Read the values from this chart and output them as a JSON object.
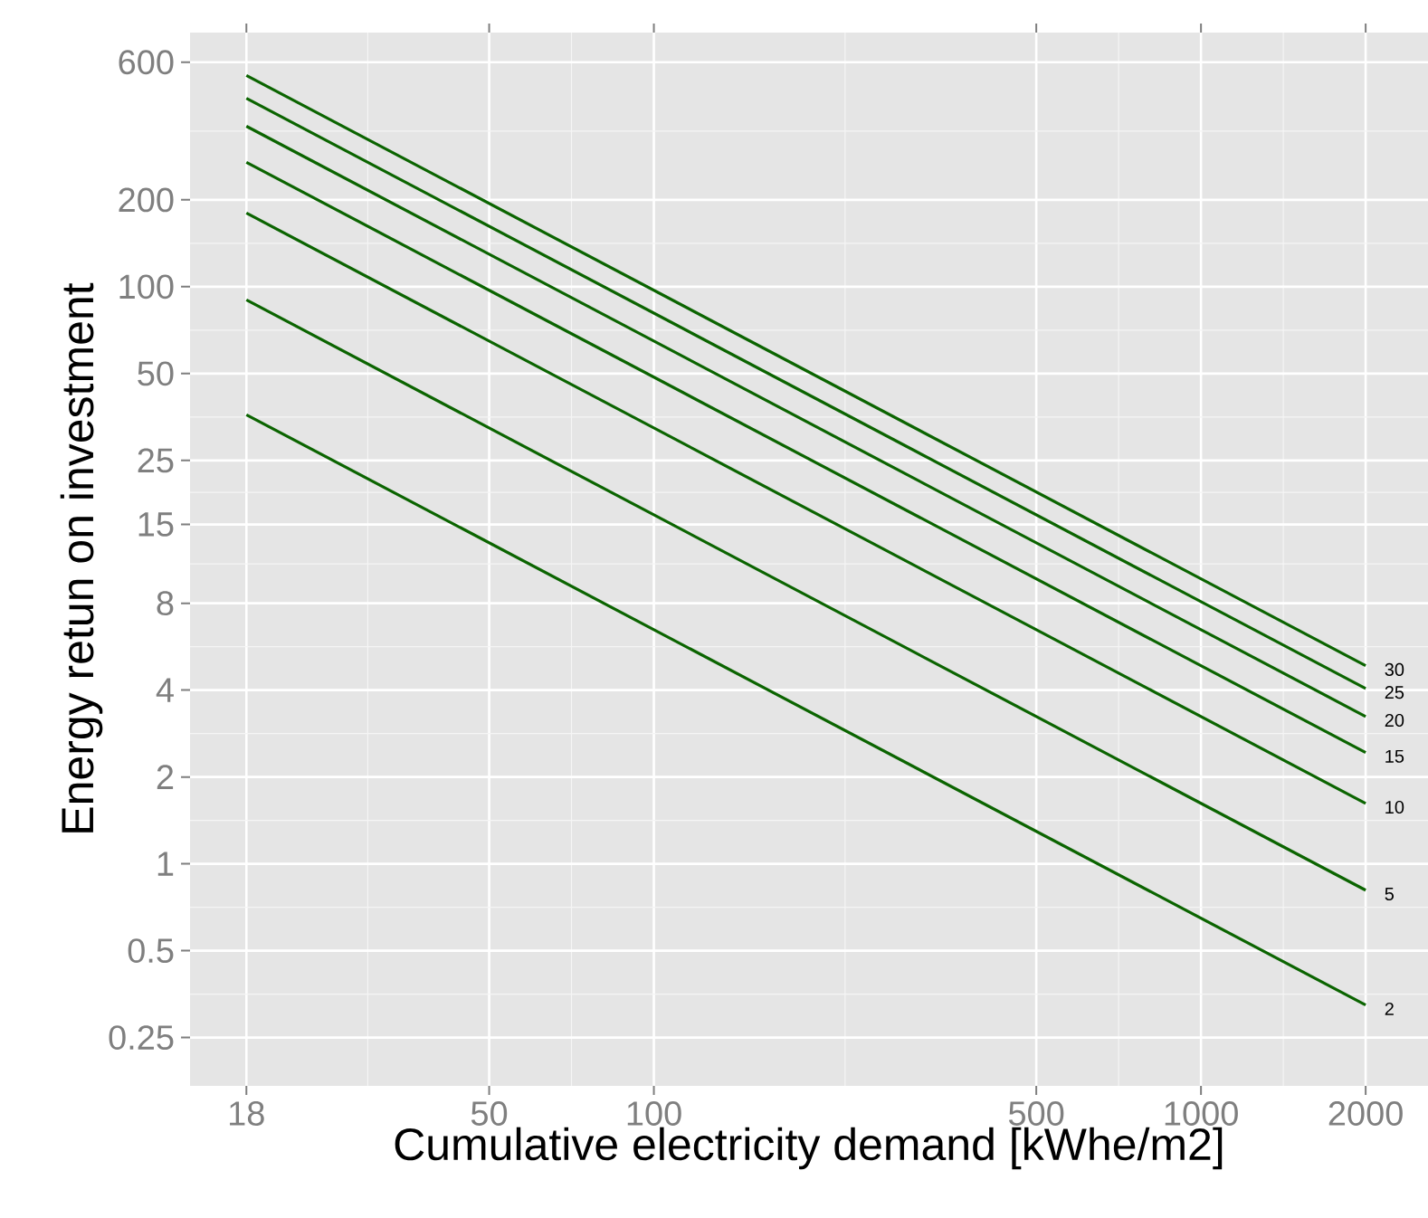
{
  "chart_data": {
    "type": "line",
    "xlabel": "Cumulative electricity demand [kWhe/m2]",
    "ylabel": "Energy retun on investment",
    "log": "xy",
    "grid": true,
    "xlim": [
      14.2,
      2600
    ],
    "ylim": [
      0.17,
      760
    ],
    "xticks": [
      18,
      50,
      100,
      500,
      1000,
      2000
    ],
    "yticks": [
      0.25,
      0.5,
      1,
      2,
      4,
      8,
      15,
      25,
      50,
      100,
      200,
      600
    ],
    "x": [
      18,
      2000
    ],
    "series": [
      {
        "name": "30",
        "color": "#0b6400",
        "values": [
          540,
          4.86
        ]
      },
      {
        "name": "25",
        "color": "#0b6400",
        "values": [
          450,
          4.05
        ]
      },
      {
        "name": "20",
        "color": "#0b6400",
        "values": [
          360,
          3.24
        ]
      },
      {
        "name": "15",
        "color": "#0b6400",
        "values": [
          270,
          2.43
        ]
      },
      {
        "name": "10",
        "color": "#0b6400",
        "values": [
          180,
          1.62
        ]
      },
      {
        "name": "5",
        "color": "#0b6400",
        "values": [
          90,
          0.81
        ]
      },
      {
        "name": "2",
        "color": "#0b6400",
        "values": [
          36,
          0.324
        ]
      }
    ]
  }
}
